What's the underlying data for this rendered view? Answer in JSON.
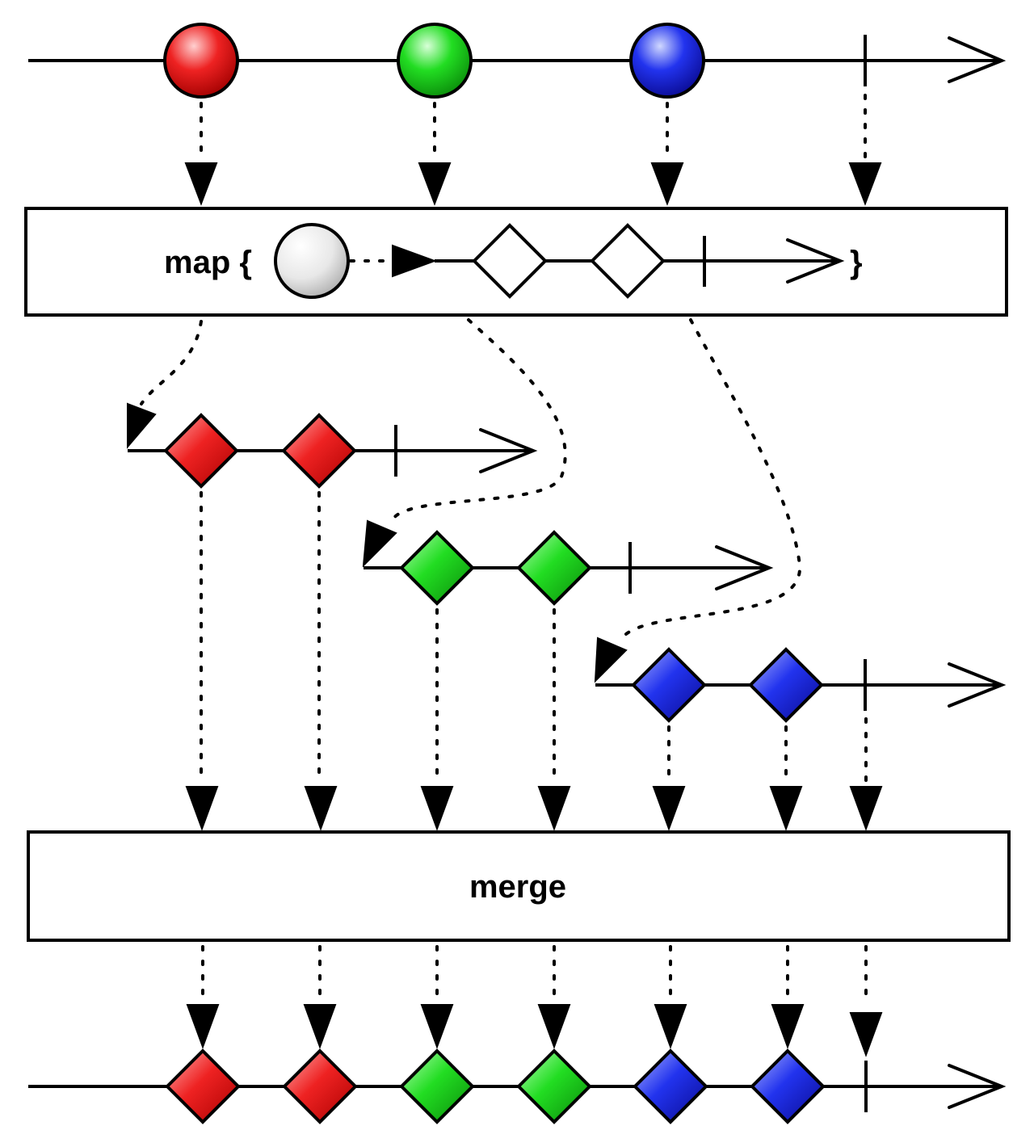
{
  "map_box": {
    "label_prefix": "map {",
    "label_suffix": "}"
  },
  "merge_box": {
    "label": "merge"
  },
  "colors": {
    "red": "#ee2222",
    "green": "#22dd22",
    "blue": "#2233ee",
    "gray": "#d0d0d0",
    "white": "#ffffff"
  },
  "source_items": [
    "red",
    "green",
    "blue"
  ],
  "inner_items_per_stream": 2,
  "inner_streams": [
    "red",
    "green",
    "blue"
  ],
  "output_items": [
    "red",
    "red",
    "green",
    "green",
    "blue",
    "blue"
  ]
}
